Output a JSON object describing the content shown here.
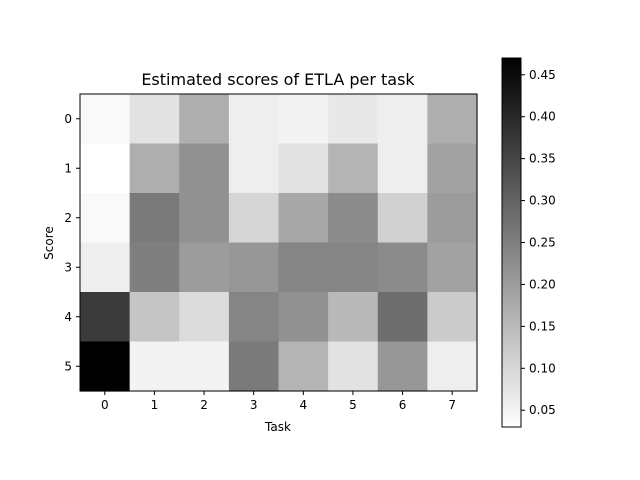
{
  "chart_data": {
    "type": "heatmap",
    "title": "Estimated scores of ETLA per task",
    "xlabel": "Task",
    "ylabel": "Score",
    "x_ticks": [
      "0",
      "1",
      "2",
      "3",
      "4",
      "5",
      "6",
      "7"
    ],
    "y_ticks": [
      "0",
      "1",
      "2",
      "3",
      "4",
      "5"
    ],
    "colormap": "gray_reversed",
    "color_range": [
      0.03,
      0.47
    ],
    "colorbar_ticks": [
      "0.05",
      "0.10",
      "0.15",
      "0.20",
      "0.25",
      "0.30",
      "0.35",
      "0.40",
      "0.45"
    ],
    "colorbar_tick_values": [
      0.05,
      0.1,
      0.15,
      0.2,
      0.25,
      0.3,
      0.35,
      0.4,
      0.45
    ],
    "values": [
      [
        0.04,
        0.08,
        0.17,
        0.06,
        0.05,
        0.07,
        0.06,
        0.17
      ],
      [
        0.03,
        0.17,
        0.22,
        0.06,
        0.08,
        0.16,
        0.06,
        0.19
      ],
      [
        0.04,
        0.26,
        0.22,
        0.1,
        0.18,
        0.23,
        0.11,
        0.2
      ],
      [
        0.06,
        0.25,
        0.2,
        0.21,
        0.24,
        0.24,
        0.23,
        0.19
      ],
      [
        0.37,
        0.13,
        0.09,
        0.24,
        0.22,
        0.15,
        0.28,
        0.12
      ],
      [
        0.47,
        0.05,
        0.05,
        0.26,
        0.16,
        0.08,
        0.21,
        0.06
      ]
    ],
    "grid": false,
    "legend": "colorbar-right"
  }
}
